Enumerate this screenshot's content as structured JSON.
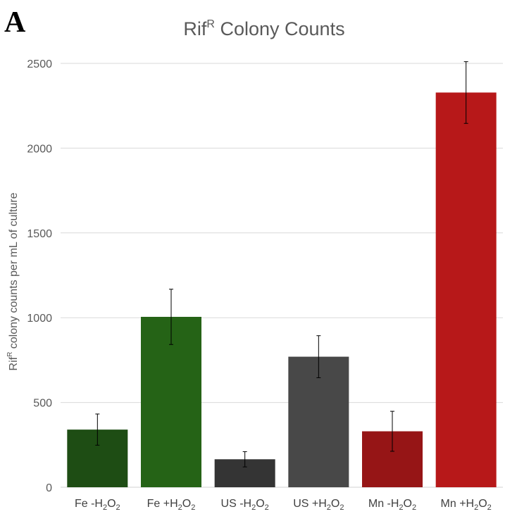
{
  "panel_label": "A",
  "chart_data": {
    "type": "bar",
    "title_main": "Rif",
    "title_sup": "R",
    "title_rest": " Colony Counts",
    "ylabel_main": "Rif",
    "ylabel_sup": "R",
    "ylabel_rest": " colony counts per mL of culture",
    "xlabel": "",
    "ylim": [
      0,
      2500
    ],
    "yticks": [
      "0",
      "500",
      "1000",
      "1500",
      "2000",
      "2500"
    ],
    "grid": true,
    "categories": [
      {
        "pre": "Fe -H",
        "sub1": "2",
        "mid": "O",
        "sub2": "2"
      },
      {
        "pre": "Fe +H",
        "sub1": "2",
        "mid": "O",
        "sub2": "2"
      },
      {
        "pre": "US -H",
        "sub1": "2",
        "mid": "O",
        "sub2": "2"
      },
      {
        "pre": "US +H",
        "sub1": "2",
        "mid": "O",
        "sub2": "2"
      },
      {
        "pre": "Mn -H",
        "sub1": "2",
        "mid": "O",
        "sub2": "2"
      },
      {
        "pre": "Mn +H",
        "sub1": "2",
        "mid": "O",
        "sub2": "2"
      }
    ],
    "values": [
      340,
      1005,
      165,
      770,
      330,
      2328
    ],
    "errors": [
      92,
      163,
      45,
      124,
      118,
      182
    ],
    "colors": [
      "#1e4d14",
      "#256316",
      "#343434",
      "#484848",
      "#961516",
      "#b71819"
    ]
  }
}
